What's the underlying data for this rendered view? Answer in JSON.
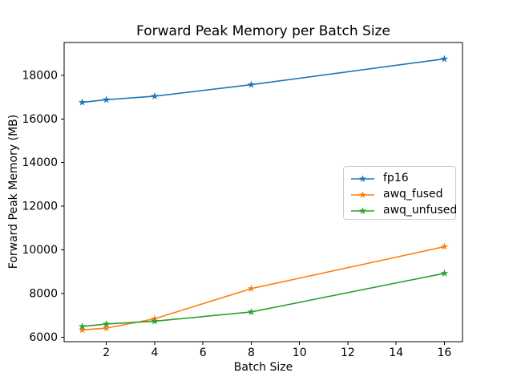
{
  "chart_data": {
    "type": "line",
    "title": "Forward Peak Memory per Batch Size",
    "xlabel": "Batch Size",
    "ylabel": "Forward Peak Memory (MB)",
    "x": [
      1,
      2,
      4,
      8,
      16
    ],
    "series": [
      {
        "name": "fp16",
        "color": "#1f77b4",
        "values": [
          16760,
          16880,
          17040,
          17570,
          18750
        ]
      },
      {
        "name": "awq_fused",
        "color": "#ff7f0e",
        "values": [
          6340,
          6420,
          6850,
          8230,
          10150
        ]
      },
      {
        "name": "awq_unfused",
        "color": "#2ca02c",
        "values": [
          6500,
          6610,
          6740,
          7160,
          8930
        ]
      }
    ],
    "marker": "star",
    "xticks": [
      2,
      4,
      6,
      8,
      10,
      12,
      14,
      16
    ],
    "yticks": [
      6000,
      8000,
      10000,
      12000,
      14000,
      16000,
      18000
    ],
    "xlim": [
      0.25,
      16.75
    ],
    "ylim": [
      5800,
      19500
    ],
    "grid": false,
    "legend_position": "center right",
    "background_color": "#ffffff",
    "axis_color": "#000000"
  }
}
